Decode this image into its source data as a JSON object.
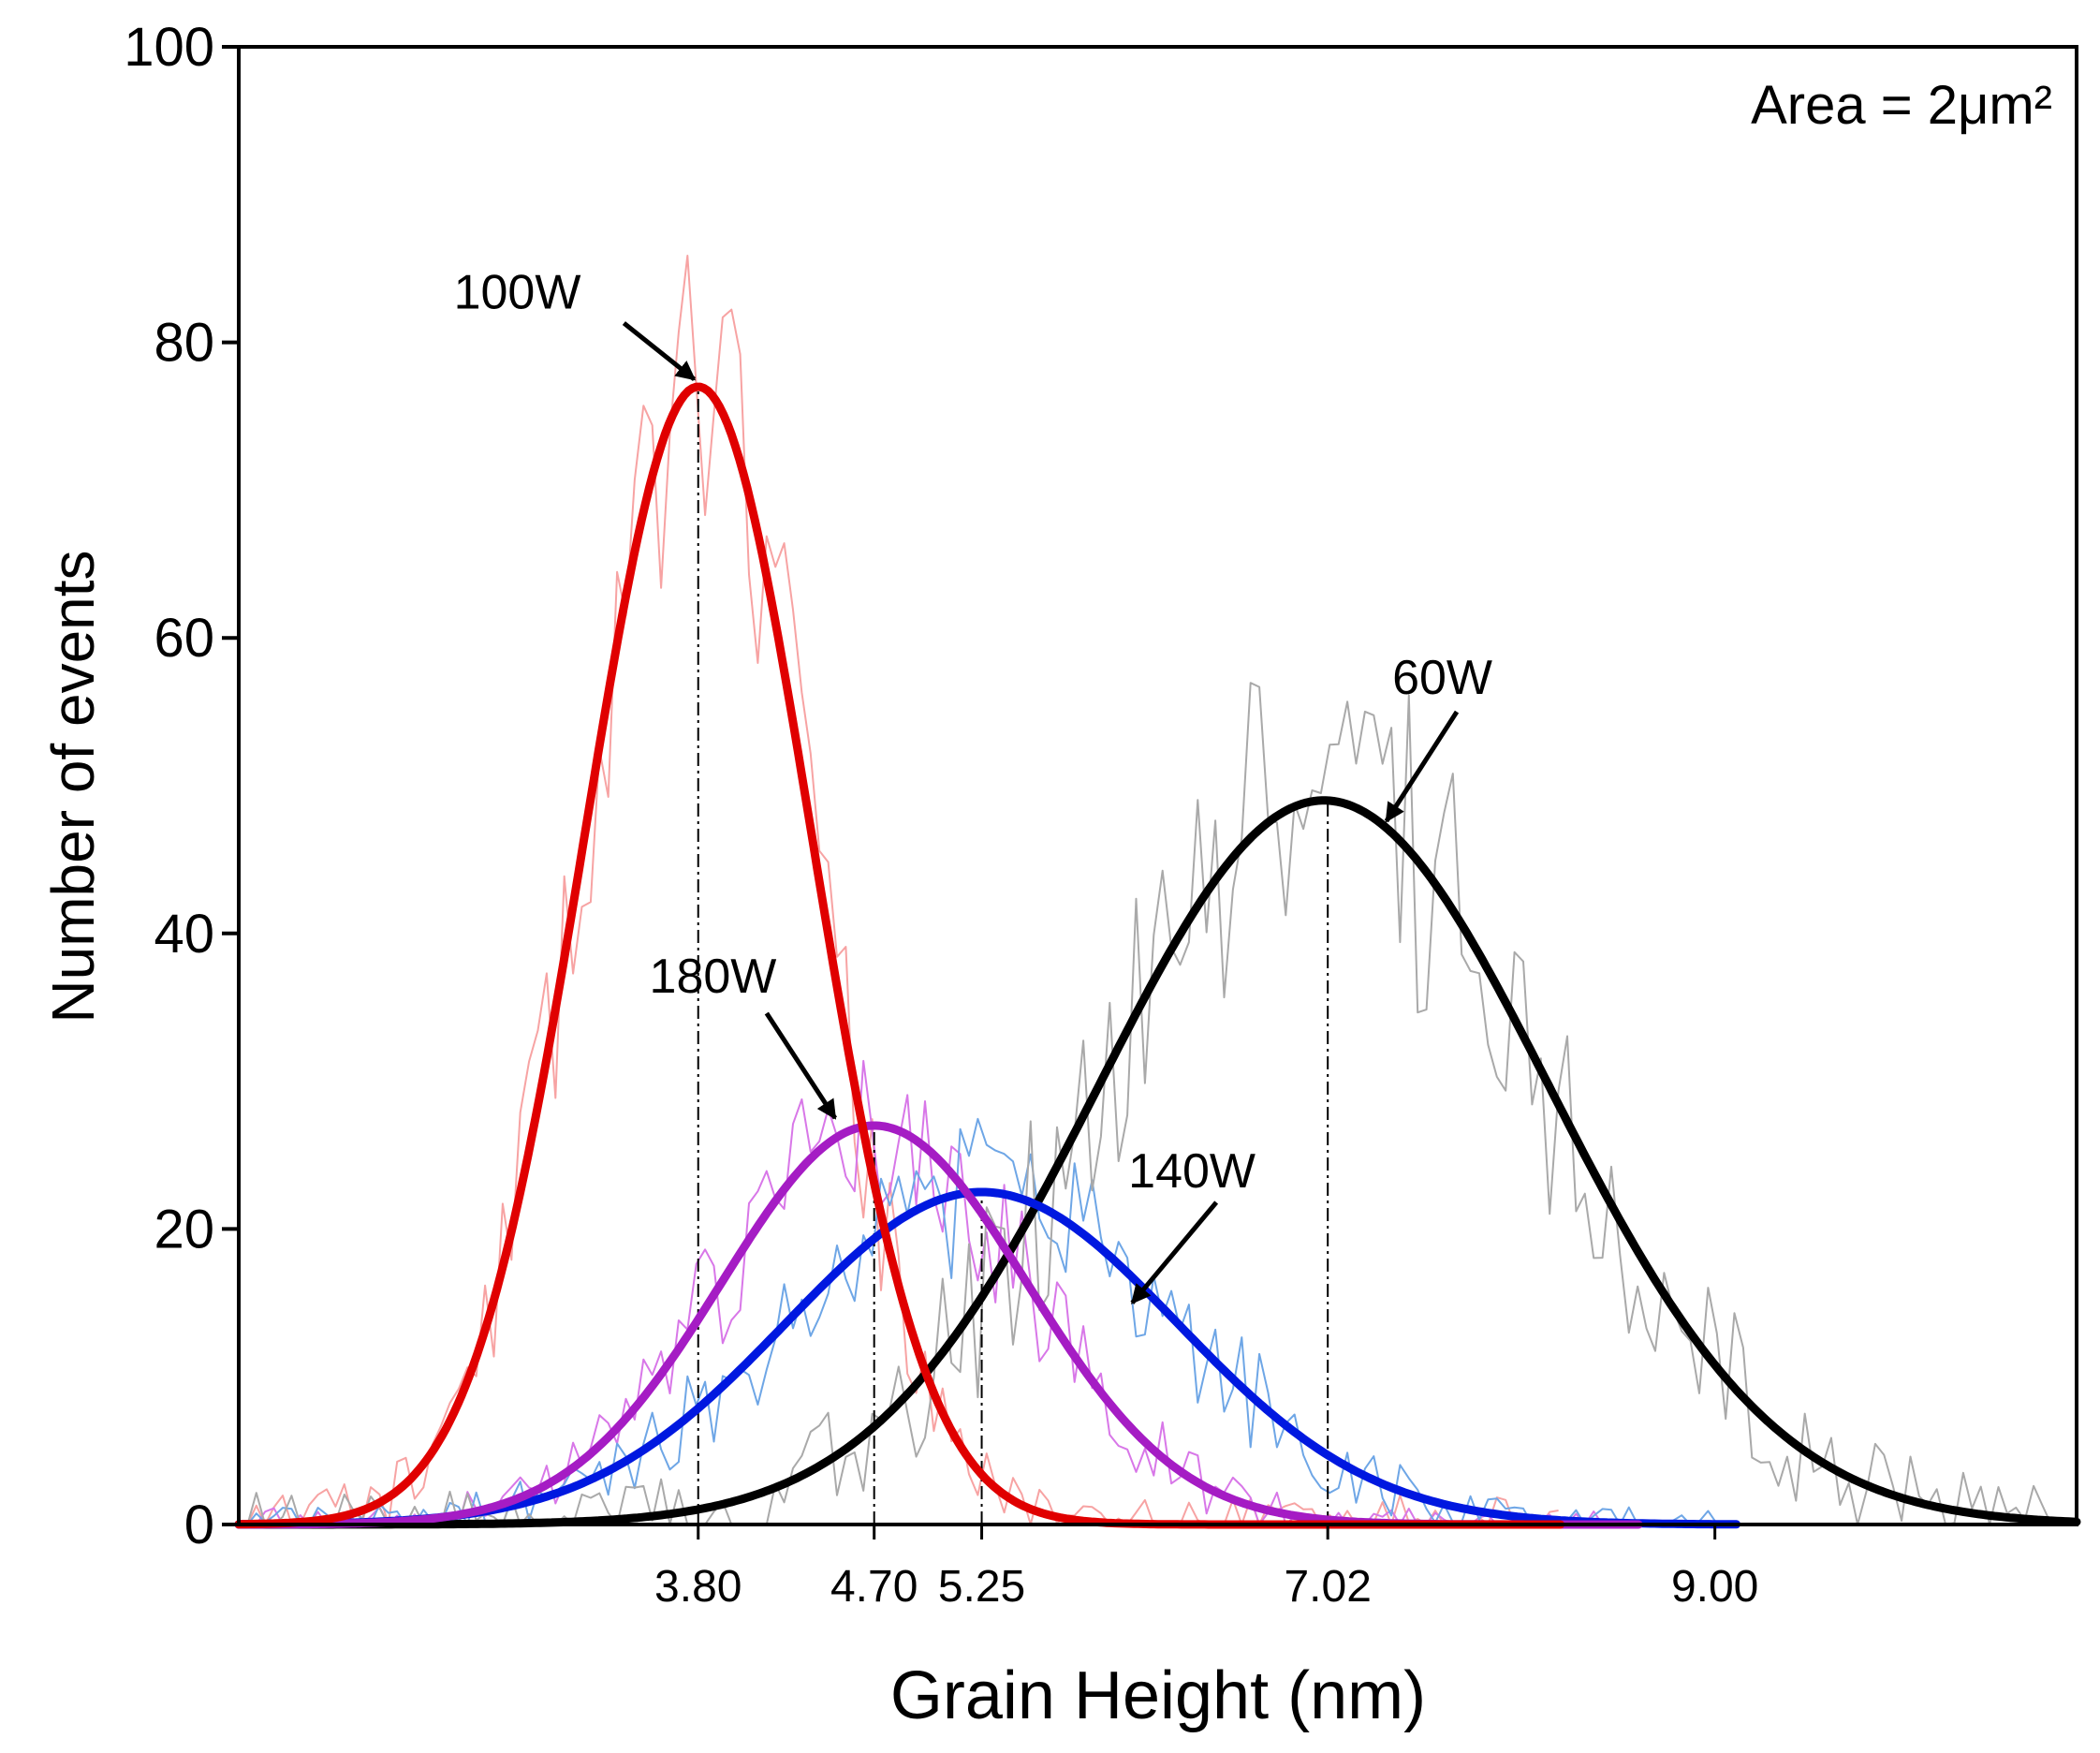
{
  "chart_data": {
    "type": "line",
    "xlabel": "Grain Height (nm)",
    "ylabel": "Number of events",
    "xlim": [
      1.45,
      10.85
    ],
    "ylim": [
      0,
      100
    ],
    "yticks": [
      0,
      20,
      40,
      60,
      80,
      100
    ],
    "xticks": [
      3.8,
      4.7,
      5.25,
      7.02,
      9.0
    ],
    "xtick_labels": [
      "3.80",
      "4.70",
      "5.25",
      "7.02",
      "9.00"
    ],
    "legend": "none",
    "area_label": "Area = 2μm²",
    "series": [
      {
        "name": "100W",
        "color": "#e00000",
        "raw_color": "#f7a3a3",
        "peak_x": 3.8,
        "peak_y": 77,
        "sigma": 0.58,
        "x_start": 1.45,
        "x_end": 8.2,
        "noise_amp": 9,
        "seed": 11
      },
      {
        "name": "180W",
        "color": "#a51cc4",
        "raw_color": "#d877e8",
        "peak_x": 4.7,
        "peak_y": 27,
        "sigma": 0.78,
        "x_start": 1.45,
        "x_end": 8.6,
        "noise_amp": 5,
        "seed": 23
      },
      {
        "name": "140W",
        "color": "#0018e0",
        "raw_color": "#6ea6e6",
        "peak_x": 5.25,
        "peak_y": 22.5,
        "sigma": 1.0,
        "x_start": 1.45,
        "x_end": 9.1,
        "noise_amp": 5,
        "seed": 37
      },
      {
        "name": "60W",
        "color": "#000000",
        "raw_color": "#a9a9a9",
        "peak_x": 7.0,
        "peak_y": 49,
        "sigma": 1.15,
        "x_start": 1.45,
        "x_end": 10.85,
        "noise_amp": 10,
        "seed": 53
      }
    ],
    "annotations": [
      {
        "text": "100W",
        "series": "100W",
        "target_x": 3.78,
        "target_y": 77.5,
        "label_x": 3.2,
        "label_y": 82.3,
        "tail_x": 3.42,
        "tail_y": 81.3,
        "align": "end"
      },
      {
        "text": "60W",
        "series": "60W",
        "target_x": 7.32,
        "target_y": 47.6,
        "label_x": 7.35,
        "label_y": 56.2,
        "tail_x": 7.68,
        "tail_y": 55.0,
        "align": "start"
      },
      {
        "text": "180W",
        "series": "180W",
        "target_x": 4.5,
        "target_y": 27.5,
        "label_x": 3.55,
        "label_y": 36.0,
        "tail_x": 4.15,
        "tail_y": 34.6,
        "align": "start"
      },
      {
        "text": "140W",
        "series": "140W",
        "target_x": 6.02,
        "target_y": 15.0,
        "label_x": 6.0,
        "label_y": 22.8,
        "tail_x": 6.45,
        "tail_y": 21.8,
        "align": "start"
      }
    ]
  }
}
